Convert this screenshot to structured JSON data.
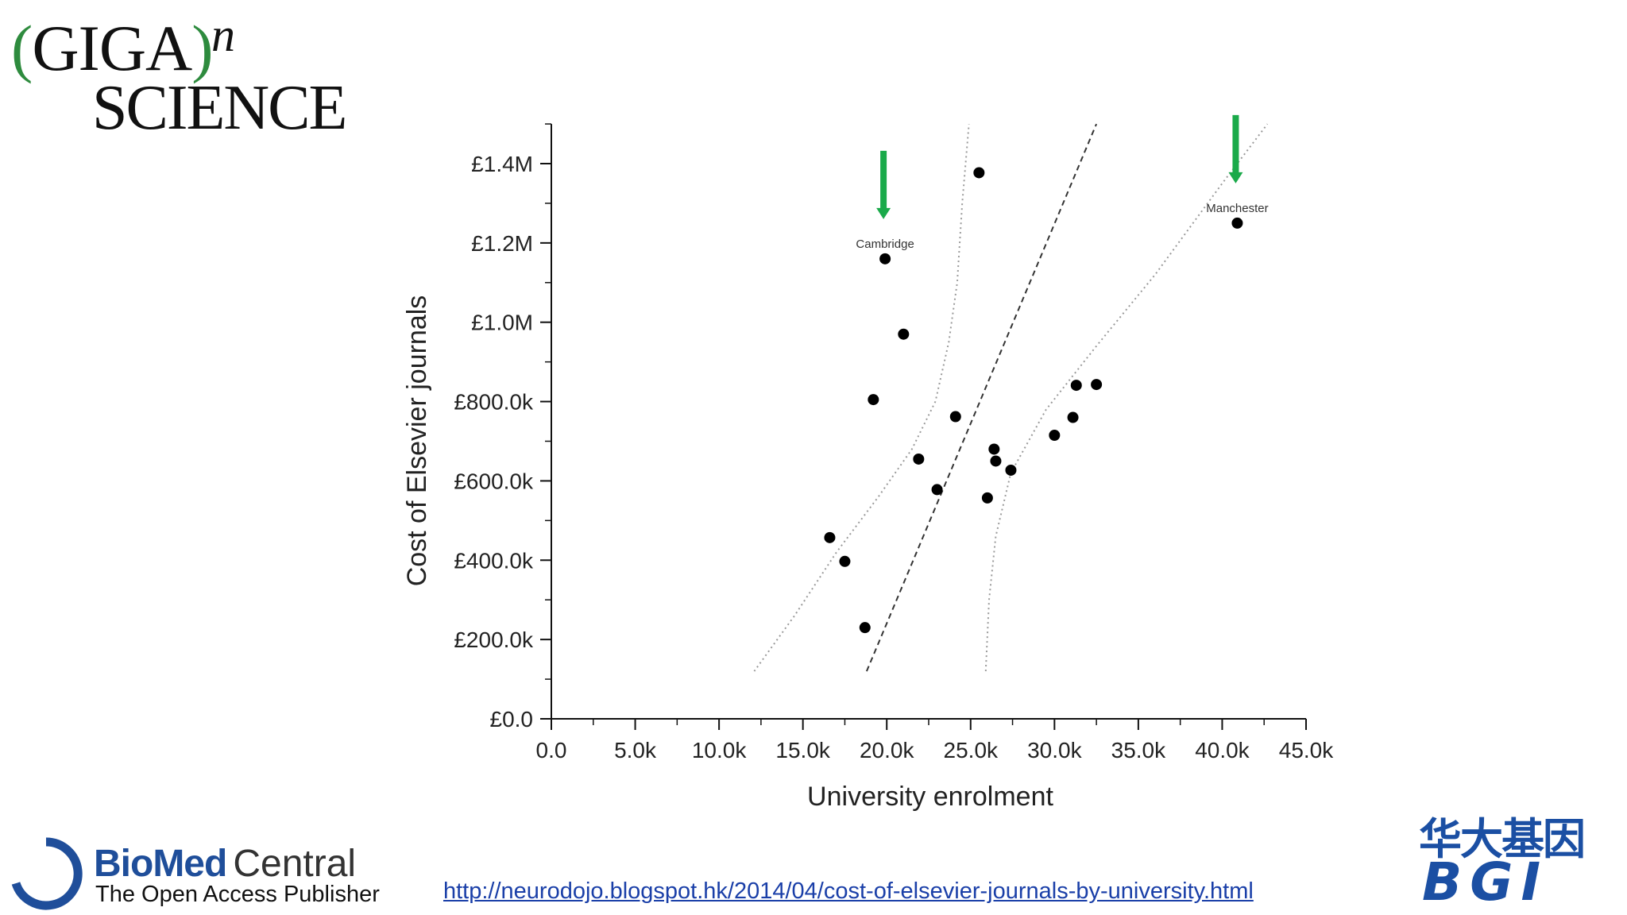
{
  "logos": {
    "giga": {
      "open_paren": "(",
      "giga": "GIGA",
      "close_paren": ")",
      "superscript": "n",
      "science": "SCIENCE"
    },
    "bmc": {
      "bio": "BioMed",
      "central": "Central",
      "tagline": "The Open Access Publisher"
    },
    "bgi": {
      "chinese": "华大基因",
      "latin": "BGI"
    }
  },
  "source_url": "http://neurodojo.blogspot.hk/2014/04/cost-of-elsevier-journals-by-university.html",
  "chart_data": {
    "type": "scatter",
    "xlabel": "University enrolment",
    "ylabel": "Cost of Elsevier journals",
    "xlim": [
      0,
      45000
    ],
    "ylim": [
      0,
      1500000
    ],
    "x_ticks": [
      0,
      5000,
      10000,
      15000,
      20000,
      25000,
      30000,
      35000,
      40000,
      45000
    ],
    "x_tick_labels": [
      "0.0",
      "5.0k",
      "10.0k",
      "15.0k",
      "20.0k",
      "25.0k",
      "30.0k",
      "35.0k",
      "40.0k",
      "45.0k"
    ],
    "y_ticks": [
      0,
      200000,
      400000,
      600000,
      800000,
      1000000,
      1200000,
      1400000
    ],
    "y_tick_labels": [
      "£0.0",
      "£200.0k",
      "£400.0k",
      "£600.0k",
      "£800.0k",
      "£1.0M",
      "£1.2M",
      "£1.4M"
    ],
    "grid": false,
    "points": [
      {
        "x": 16600,
        "y": 457000
      },
      {
        "x": 17500,
        "y": 397000
      },
      {
        "x": 18700,
        "y": 230000
      },
      {
        "x": 19200,
        "y": 805000
      },
      {
        "x": 19900,
        "y": 1160000,
        "label": "Cambridge"
      },
      {
        "x": 21000,
        "y": 970000
      },
      {
        "x": 21900,
        "y": 655000
      },
      {
        "x": 23000,
        "y": 578000
      },
      {
        "x": 24100,
        "y": 762000
      },
      {
        "x": 25500,
        "y": 1377000
      },
      {
        "x": 26000,
        "y": 557000
      },
      {
        "x": 26400,
        "y": 680000
      },
      {
        "x": 26500,
        "y": 650000
      },
      {
        "x": 27400,
        "y": 627000
      },
      {
        "x": 30000,
        "y": 715000
      },
      {
        "x": 31100,
        "y": 760000
      },
      {
        "x": 31300,
        "y": 841000
      },
      {
        "x": 32500,
        "y": 843000
      },
      {
        "x": 40900,
        "y": 1250000,
        "label": "Manchester"
      }
    ],
    "fit_line": [
      [
        18800,
        120000
      ],
      [
        32500,
        1500000
      ]
    ],
    "confidence_bands": {
      "upper": [
        [
          12100,
          120000
        ],
        [
          14500,
          260000
        ],
        [
          17000,
          420000
        ],
        [
          19500,
          560000
        ],
        [
          21500,
          680000
        ],
        [
          22900,
          800000
        ],
        [
          23700,
          950000
        ],
        [
          24200,
          1100000
        ],
        [
          24500,
          1300000
        ],
        [
          24900,
          1500000
        ]
      ],
      "lower": [
        [
          25900,
          120000
        ],
        [
          26100,
          300000
        ],
        [
          26500,
          460000
        ],
        [
          27400,
          620000
        ],
        [
          29500,
          780000
        ],
        [
          32500,
          940000
        ],
        [
          36000,
          1120000
        ],
        [
          40000,
          1350000
        ],
        [
          42700,
          1500000
        ]
      ]
    },
    "annotations": [
      {
        "text": "Cambridge",
        "x": 19900,
        "y": 1160000,
        "arrow": "green-down"
      },
      {
        "text": "Manchester",
        "x": 40900,
        "y": 1250000,
        "arrow": "green-down"
      }
    ],
    "colors": {
      "points": "#000000",
      "fit_line": "#333333",
      "bands": "#9a9a9a",
      "arrows": "#1aaa4a"
    }
  }
}
